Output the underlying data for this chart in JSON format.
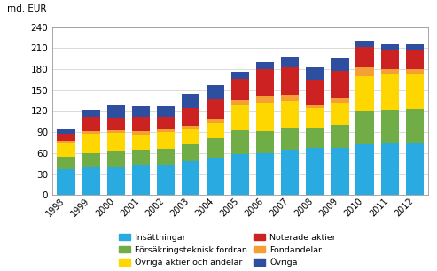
{
  "years": [
    "1998",
    "1999",
    "2000",
    "2001",
    "2002",
    "2003",
    "2004",
    "2005",
    "2006",
    "2007",
    "2008",
    "2009",
    "2010",
    "2011",
    "2012"
  ],
  "series": {
    "Insättningar": [
      37,
      40,
      40,
      43,
      44,
      48,
      53,
      58,
      60,
      65,
      68,
      68,
      72,
      75,
      75
    ],
    "Försäkringsteknisk fordran": [
      18,
      20,
      22,
      22,
      22,
      24,
      28,
      35,
      32,
      30,
      27,
      32,
      48,
      47,
      48
    ],
    "Övriga aktier och andelar": [
      20,
      28,
      27,
      22,
      24,
      22,
      22,
      35,
      40,
      40,
      30,
      32,
      50,
      52,
      50
    ],
    "Fondandelar": [
      3,
      4,
      4,
      5,
      4,
      5,
      6,
      8,
      10,
      8,
      5,
      6,
      12,
      6,
      7
    ],
    "Noterade aktier": [
      10,
      20,
      18,
      20,
      18,
      25,
      28,
      30,
      38,
      40,
      35,
      40,
      30,
      28,
      28
    ],
    "Övriga": [
      6,
      10,
      18,
      15,
      15,
      20,
      20,
      10,
      10,
      15,
      18,
      18,
      8,
      8,
      8
    ]
  },
  "colors": {
    "Insättningar": "#29abe2",
    "Försäkringsteknisk fordran": "#70ad47",
    "Övriga aktier och andelar": "#ffd700",
    "Fondandelar": "#f4a035",
    "Noterade aktier": "#cc2222",
    "Övriga": "#2e4fa0"
  },
  "order": [
    "Insättningar",
    "Försäkringsteknisk fordran",
    "Övriga aktier och andelar",
    "Fondandelar",
    "Noterade aktier",
    "Övriga"
  ],
  "ylabel": "md. EUR",
  "ylim": [
    0,
    240
  ],
  "yticks": [
    0,
    30,
    60,
    90,
    120,
    150,
    180,
    210,
    240
  ],
  "legend_order": [
    "Insättningar",
    "Försäkringsteknisk fordran",
    "Övriga aktier och andelar",
    "Noterade aktier",
    "Fondandelar",
    "Övriga"
  ],
  "background_color": "#ffffff"
}
